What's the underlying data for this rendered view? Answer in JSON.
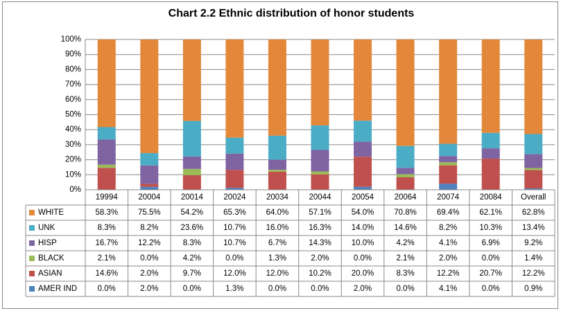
{
  "chart_data": {
    "type": "bar",
    "stacked": true,
    "title": "Chart 2.2 Ethnic distribution of honor students",
    "categories": [
      "19994",
      "20004",
      "20014",
      "20024",
      "20034",
      "20044",
      "20054",
      "20064",
      "20074",
      "20084",
      "Overall"
    ],
    "ylim": [
      0,
      100
    ],
    "yticks": [
      {
        "value": 0,
        "label": "0%"
      },
      {
        "value": 10,
        "label": "10%"
      },
      {
        "value": 20,
        "label": "20%"
      },
      {
        "value": 30,
        "label": "30%"
      },
      {
        "value": 40,
        "label": "40%"
      },
      {
        "value": 50,
        "label": "50%"
      },
      {
        "value": 60,
        "label": "60%"
      },
      {
        "value": 70,
        "label": "70%"
      },
      {
        "value": 80,
        "label": "80%"
      },
      {
        "value": 90,
        "label": "90%"
      },
      {
        "value": 100,
        "label": "100%"
      }
    ],
    "grid": true,
    "series": [
      {
        "name": "AMER IND",
        "color": "#4f81bd",
        "values": [
          0.0,
          2.0,
          0.0,
          1.3,
          0.0,
          0.0,
          2.0,
          0.0,
          4.1,
          0.0,
          0.9
        ],
        "value_labels": [
          "0.0%",
          "2.0%",
          "0.0%",
          "1.3%",
          "0.0%",
          "0.0%",
          "2.0%",
          "0.0%",
          "4.1%",
          "0.0%",
          "0.9%"
        ]
      },
      {
        "name": "ASIAN",
        "color": "#c0504d",
        "values": [
          14.6,
          2.0,
          9.7,
          12.0,
          12.0,
          10.2,
          20.0,
          8.3,
          12.2,
          20.7,
          12.2
        ],
        "value_labels": [
          "14.6%",
          "2.0%",
          "9.7%",
          "12.0%",
          "12.0%",
          "10.2%",
          "20.0%",
          "8.3%",
          "12.2%",
          "20.7%",
          "12.2%"
        ]
      },
      {
        "name": "BLACK",
        "color": "#9bbb59",
        "values": [
          2.1,
          0.0,
          4.2,
          0.0,
          1.3,
          2.0,
          0.0,
          2.1,
          2.0,
          0.0,
          1.4
        ],
        "value_labels": [
          "2.1%",
          "0.0%",
          "4.2%",
          "0.0%",
          "1.3%",
          "2.0%",
          "0.0%",
          "2.1%",
          "2.0%",
          "0.0%",
          "1.4%"
        ]
      },
      {
        "name": "HISP",
        "color": "#8064a2",
        "values": [
          16.7,
          12.2,
          8.3,
          10.7,
          6.7,
          14.3,
          10.0,
          4.2,
          4.1,
          6.9,
          9.2
        ],
        "value_labels": [
          "16.7%",
          "12.2%",
          "8.3%",
          "10.7%",
          "6.7%",
          "14.3%",
          "10.0%",
          "4.2%",
          "4.1%",
          "6.9%",
          "9.2%"
        ]
      },
      {
        "name": "UNK",
        "color": "#4bacc6",
        "values": [
          8.3,
          8.2,
          23.6,
          10.7,
          16.0,
          16.3,
          14.0,
          14.6,
          8.2,
          10.3,
          13.4
        ],
        "value_labels": [
          "8.3%",
          "8.2%",
          "23.6%",
          "10.7%",
          "16.0%",
          "16.3%",
          "14.0%",
          "14.6%",
          "8.2%",
          "10.3%",
          "13.4%"
        ]
      },
      {
        "name": "WHITE",
        "color": "#e3883a",
        "values": [
          58.3,
          75.5,
          54.2,
          65.3,
          64.0,
          57.1,
          54.0,
          70.8,
          69.4,
          62.1,
          62.8
        ],
        "value_labels": [
          "58.3%",
          "75.5%",
          "54.2%",
          "65.3%",
          "64.0%",
          "57.1%",
          "54.0%",
          "70.8%",
          "69.4%",
          "62.1%",
          "62.8%"
        ]
      }
    ]
  }
}
